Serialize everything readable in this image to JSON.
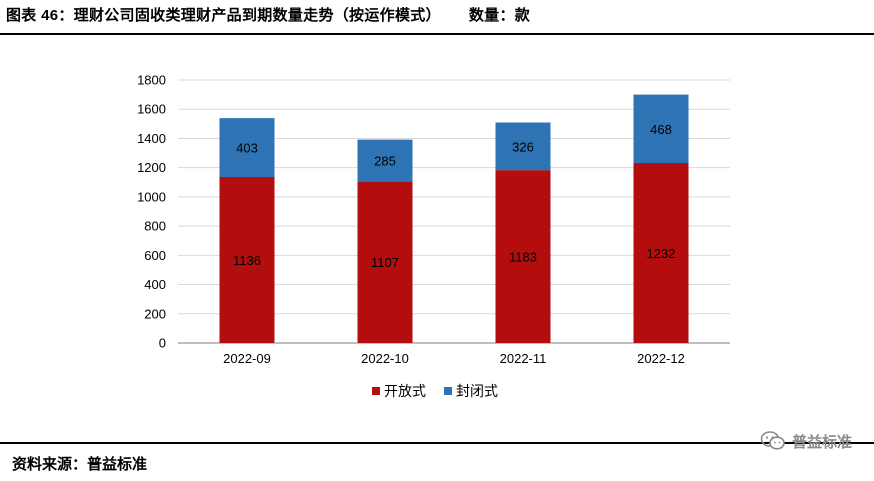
{
  "header": {
    "title": "图表 46：理财公司固收类理财产品到期数量走势（按运作模式）",
    "unit": "数量：款"
  },
  "footer": {
    "source": "资料来源：普益标准",
    "watermark": "普益标准"
  },
  "colors": {
    "open": "#b30d0d",
    "closed": "#2e74b5",
    "grid": "#d9d9d9",
    "axis": "#7f7f7f"
  },
  "chart_data": {
    "type": "bar",
    "stacked": true,
    "categories": [
      "2022-09",
      "2022-10",
      "2022-11",
      "2022-12"
    ],
    "series": [
      {
        "name": "开放式",
        "values": [
          1136,
          1107,
          1183,
          1232
        ]
      },
      {
        "name": "封闭式",
        "values": [
          403,
          285,
          326,
          468
        ]
      }
    ],
    "ylim": [
      0,
      1800
    ],
    "yticks": [
      "0",
      "200",
      "400",
      "600",
      "800",
      "1000",
      "1200",
      "1400",
      "1600",
      "1800"
    ],
    "grid": true,
    "legend_position": "bottom"
  }
}
